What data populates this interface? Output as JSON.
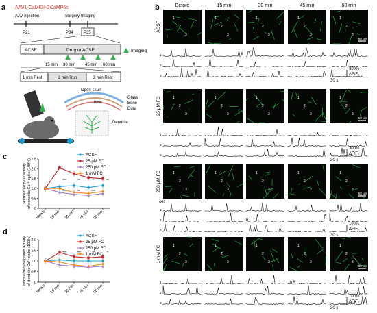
{
  "panel_a": {
    "letter": "a",
    "virus": "AAV1-CaMKII-GCaMP6s",
    "timeline": {
      "events": [
        "AAV injection",
        "Surgery",
        "Imaging"
      ],
      "days": [
        "P21",
        "P34",
        "P35"
      ]
    },
    "protocol": {
      "acsf": "ACSF",
      "drug": "Drug or ACSF",
      "imaging_legend": "Imaging",
      "times": [
        "15 min",
        "30 min",
        "45 min",
        "60 min"
      ],
      "session": [
        "1 min Rest",
        "2 min Run",
        "2 min Rest"
      ]
    },
    "schematic": {
      "open_skull": "Open-skull",
      "layers": [
        "Glass",
        "Bone",
        "Dura"
      ],
      "brain": "Brain",
      "dendrite": "Dendrite"
    }
  },
  "panel_b": {
    "letter": "b",
    "columns": [
      "Before",
      "15 min",
      "30 min",
      "45 min",
      "60 min"
    ],
    "rows": [
      {
        "condition": "ACSF",
        "scale_time": "30 s",
        "scale_amp": "300%"
      },
      {
        "condition": "25 μM FC",
        "scale_time": "30 s",
        "scale_amp": "300%"
      },
      {
        "condition": "250 μM FC",
        "scale_time": "30 s",
        "scale_amp": "100%"
      },
      {
        "condition": "1 mM FC",
        "scale_time": "30 s",
        "scale_amp": "100%"
      }
    ],
    "scalebar": "50 μm",
    "cell_label": "cell",
    "dff_label": "ΔF/F₀"
  },
  "colors": {
    "acsf": "#1f9bd7",
    "fc25": "#c0272d",
    "fc250": "#a07cc5",
    "fc1m": "#f08a24",
    "title_red": "#e8392b",
    "imaging_green": "#2fb34a"
  },
  "chart_data": [
    {
      "panel": "c",
      "type": "line",
      "ylabel": "Normalized peak activity of dendritic Ca²⁺ spike (100%)",
      "categories": [
        "before",
        "15 min",
        "30 min",
        "45 min",
        "60 min"
      ],
      "ylim": [
        0,
        2.5
      ],
      "yticks": [
        "0",
        "0.5",
        "1.0",
        "1.5",
        "2.0",
        "2.5"
      ],
      "series": [
        {
          "name": "ACSF",
          "values": [
            1.0,
            1.1,
            1.15,
            1.05,
            1.15
          ]
        },
        {
          "name": "25 μM FC",
          "values": [
            1.0,
            2.05,
            1.75,
            1.55,
            1.5
          ]
        },
        {
          "name": "250 μM FC",
          "values": [
            1.0,
            0.8,
            0.7,
            0.65,
            0.75
          ]
        },
        {
          "name": "1 mM FC",
          "values": [
            1.0,
            1.0,
            0.8,
            0.75,
            0.85
          ]
        }
      ],
      "annotations": [
        "***",
        "**",
        "*",
        "**",
        "***",
        "**",
        "***"
      ]
    },
    {
      "panel": "d",
      "type": "line",
      "ylabel": "Normalized integrated activity of dendritic Ca²⁺ spike (100%)",
      "categories": [
        "before",
        "15 min",
        "30 min",
        "45 min",
        "60 min"
      ],
      "ylim": [
        0,
        2.0
      ],
      "yticks": [
        "0",
        "0.5",
        "1.0",
        "1.5",
        "2.0"
      ],
      "series": [
        {
          "name": "ACSF",
          "values": [
            1.0,
            1.05,
            1.0,
            1.0,
            1.0
          ]
        },
        {
          "name": "25 μM FC",
          "values": [
            1.0,
            1.4,
            1.2,
            1.15,
            1.2
          ]
        },
        {
          "name": "250 μM FC",
          "values": [
            1.0,
            0.8,
            0.75,
            0.7,
            0.75
          ]
        },
        {
          "name": "1 mM FC",
          "values": [
            1.0,
            0.95,
            0.8,
            0.75,
            0.85
          ]
        }
      ],
      "annotations": [
        "***",
        "***",
        "**",
        "*"
      ]
    }
  ]
}
